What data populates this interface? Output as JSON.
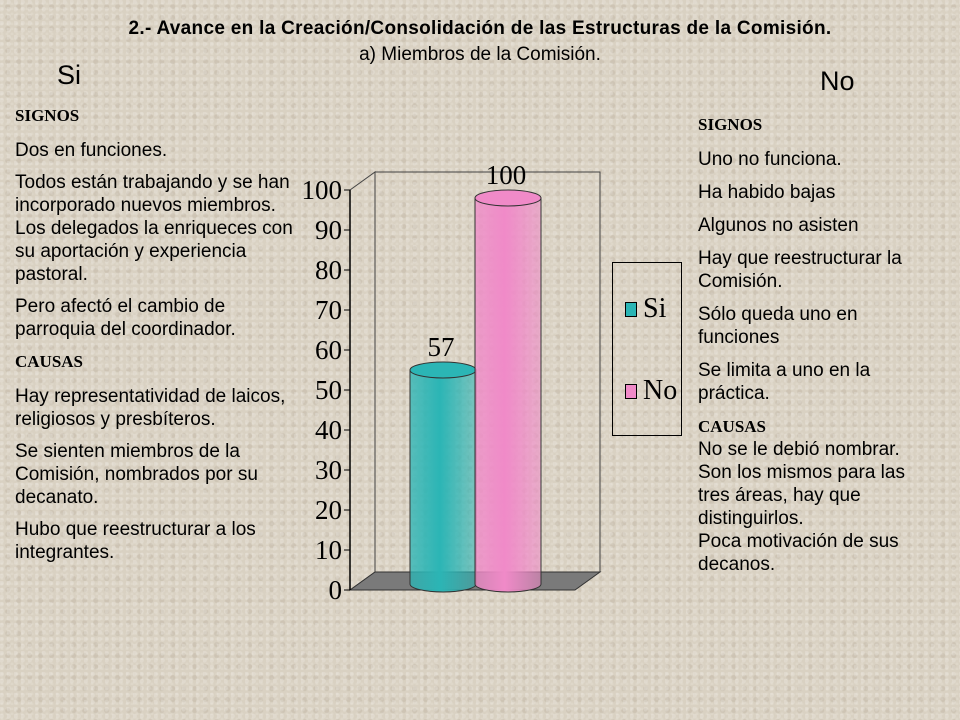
{
  "slide": {
    "title": "2.- Avance en la Creación/Consolidación de las Estructuras de la Comisión.",
    "subtitle": "a) Miembros de la Comisión.",
    "si_heading": "Si",
    "no_heading": "No"
  },
  "left": {
    "signos_label": "SIGNOS",
    "signos": [
      "Dos en funciones.",
      "Todos están trabajando y se han incorporado nuevos miembros. Los delegados la enriqueces con su aportación y experiencia pastoral.",
      "Pero afectó el cambio de parroquia del coordinador."
    ],
    "causas_label": "CAUSAS",
    "causas": [
      "Hay representatividad de laicos, religiosos y presbíteros.",
      "Se sienten miembros de la Comisión, nombrados por su decanato.",
      "Hubo que reestructurar a los integrantes."
    ]
  },
  "right": {
    "signos_label": "SIGNOS",
    "signos": [
      "Uno no funciona.",
      "Ha habido bajas",
      "Algunos no asisten",
      "Hay que reestructurar la Comisión.",
      "Sólo queda uno en funciones",
      "Se limita a uno en la práctica."
    ],
    "causas_label": "CAUSAS",
    "causas_text": "No se le debió nombrar. Son los mismos para las tres áreas, hay que distinguirlos.",
    "causas_text2": "Poca motivación de sus decanos."
  },
  "chart_data": {
    "type": "bar",
    "categories": [
      ""
    ],
    "series": [
      {
        "name": "Si",
        "values": [
          57
        ],
        "color": "#2bb5b5"
      },
      {
        "name": "No",
        "values": [
          100
        ],
        "color": "#f08ac8"
      }
    ],
    "data_labels": [
      "57",
      "100"
    ],
    "ylim": [
      0,
      100
    ],
    "yticks": [
      "0",
      "10",
      "20",
      "30",
      "40",
      "50",
      "60",
      "70",
      "80",
      "90",
      "100"
    ],
    "legend": "right",
    "grid": false
  }
}
